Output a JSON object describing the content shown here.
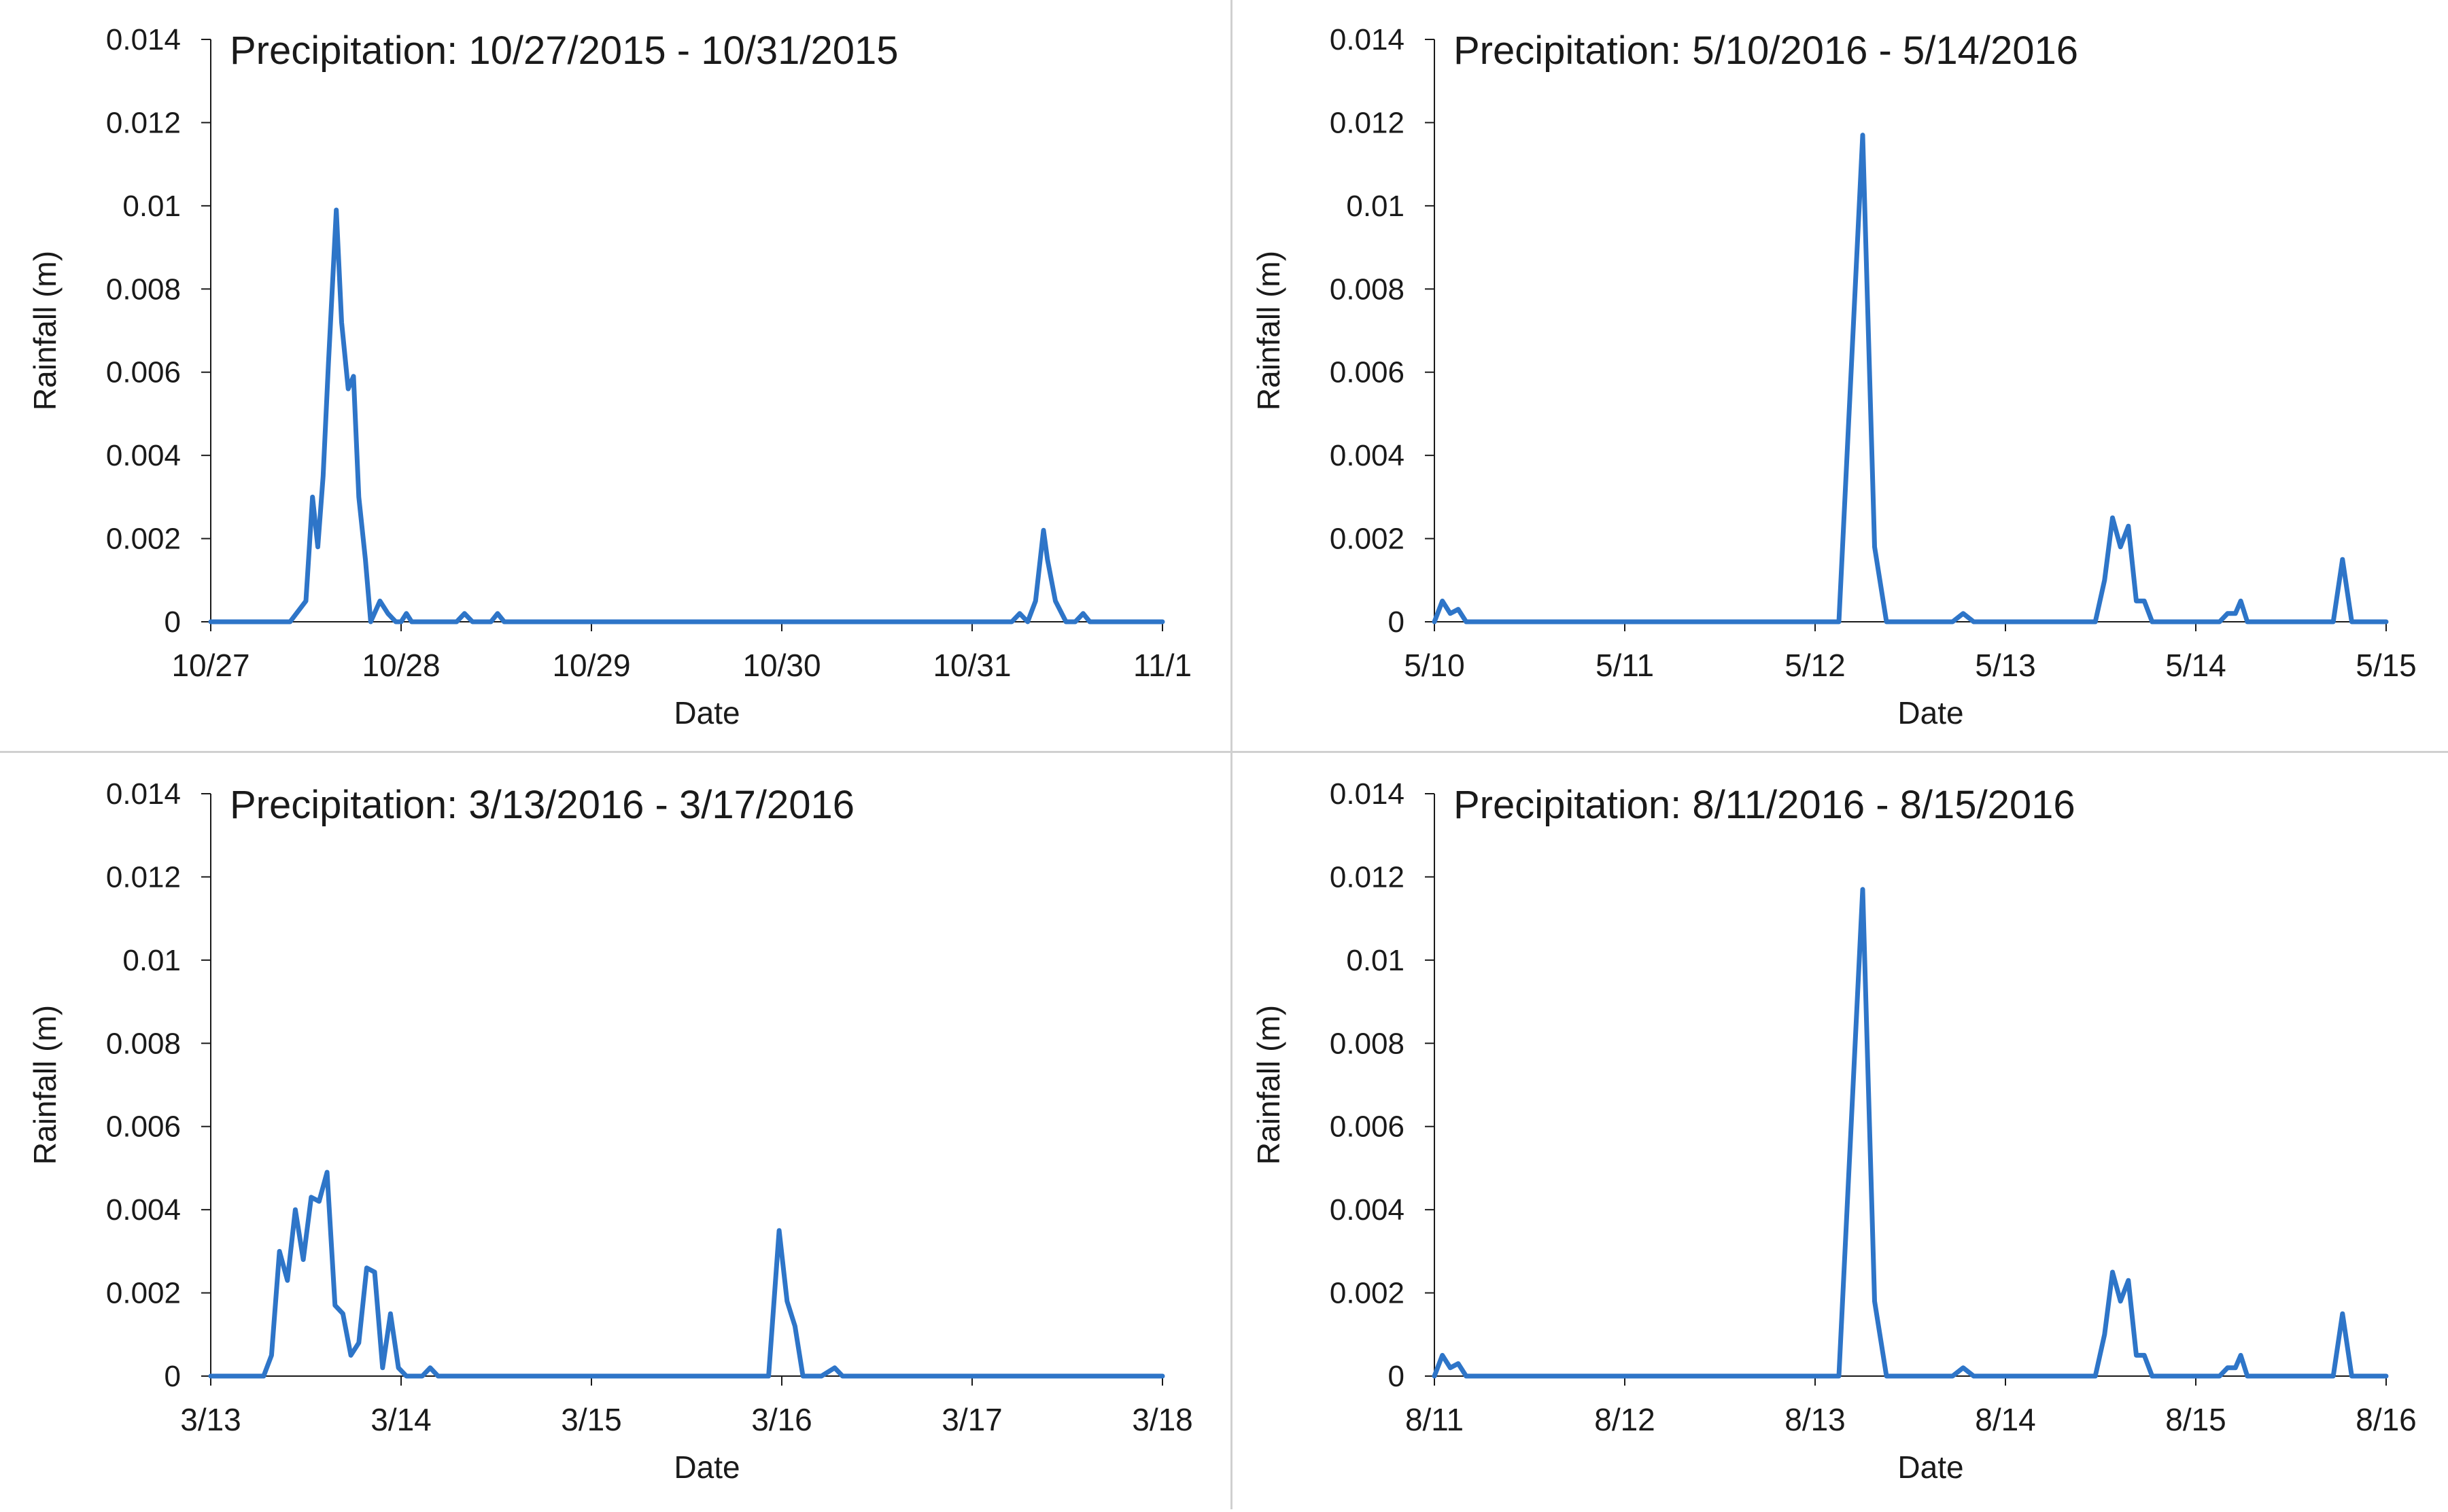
{
  "style": {
    "line_color": "#2e75c8",
    "axis_color": "#1a1a1a",
    "background": "#ffffff"
  },
  "chart_data": [
    {
      "type": "line",
      "title": "Precipitation: 10/27/2015 - 10/31/2015",
      "xlabel": "Date",
      "ylabel": "Rainfall (m)",
      "xlim": [
        "10/27",
        "11/1"
      ],
      "ylim": [
        0,
        0.014
      ],
      "x_ticks": [
        "10/27",
        "10/28",
        "10/29",
        "10/30",
        "10/31",
        "11/1"
      ],
      "y_ticks": [
        "0",
        "0.002",
        "0.004",
        "0.006",
        "0.008",
        "0.01",
        "0.012",
        "0.014"
      ],
      "grid": false,
      "legend": "none",
      "series": [
        {
          "x": [
            "10/27 00:00",
            "10/27 10:00",
            "10/27 12:00",
            "10/27 12:50",
            "10/27 13:30",
            "10/27 14:10",
            "10/27 14:50",
            "10/27 15:50",
            "10/27 16:30",
            "10/27 17:20",
            "10/27 18:00",
            "10/27 18:40",
            "10/27 19:30",
            "10/27 20:10",
            "10/27 21:20",
            "10/27 22:20",
            "10/27 23:20",
            "10/28 00:00",
            "10/28 00:40",
            "10/28 01:20",
            "10/28 02:00",
            "10/28 07:00",
            "10/28 08:00",
            "10/28 09:00",
            "10/28 11:20",
            "10/28 12:10",
            "10/28 13:00",
            "10/31 05:00",
            "10/31 06:00",
            "10/31 07:00",
            "10/31 08:00",
            "10/31 09:00",
            "10/31 09:30",
            "10/31 10:30",
            "10/31 11:50",
            "10/31 13:00",
            "10/31 14:00",
            "10/31 14:50",
            "10/31 15:30",
            "11/1 00:00"
          ],
          "y": [
            0,
            0,
            0.0005,
            0.003,
            0.0018,
            0.0035,
            0.0062,
            0.0099,
            0.0072,
            0.0056,
            0.0059,
            0.003,
            0.0015,
            0,
            0.0005,
            0.0002,
            0,
            0,
            0.0002,
            0,
            0,
            0,
            0.0002,
            0,
            0,
            0.0002,
            0,
            0,
            0.0002,
            0,
            0.0005,
            0.0022,
            0.0015,
            0.0005,
            0,
            0,
            0.0002,
            0,
            0,
            0
          ]
        }
      ]
    },
    {
      "type": "line",
      "title": "Precipitation: 5/10/2016 - 5/14/2016",
      "xlabel": "Date",
      "ylabel": "Rainfall (m)",
      "xlim": [
        "5/10",
        "5/15"
      ],
      "ylim": [
        0,
        0.014
      ],
      "x_ticks": [
        "5/10",
        "5/11",
        "5/12",
        "5/13",
        "5/14",
        "5/15"
      ],
      "y_ticks": [
        "0",
        "0.002",
        "0.004",
        "0.006",
        "0.008",
        "0.01",
        "0.012",
        "0.014"
      ],
      "grid": false,
      "legend": "none",
      "series": [
        {
          "x": [
            "5/10 00:00",
            "5/10 01:00",
            "5/10 02:00",
            "5/10 03:00",
            "5/10 04:00",
            "5/10 05:00",
            "5/10 06:00",
            "5/12 01:00",
            "5/12 03:00",
            "5/12 06:00",
            "5/12 07:30",
            "5/12 09:00",
            "5/12 11:00",
            "5/12 12:00",
            "5/12 17:20",
            "5/12 18:40",
            "5/12 20:00",
            "5/13 11:20",
            "5/13 12:30",
            "5/13 13:30",
            "5/13 14:30",
            "5/13 15:30",
            "5/13 16:30",
            "5/13 17:30",
            "5/13 18:30",
            "5/13 19:40",
            "5/13 21:00",
            "5/14 03:00",
            "5/14 04:00",
            "5/14 05:00",
            "5/14 05:40",
            "5/14 06:30",
            "5/14 07:30",
            "5/14 08:30",
            "5/14 17:20",
            "5/14 18:30",
            "5/14 19:40",
            "5/14 20:40",
            "5/15 00:00"
          ],
          "y": [
            0,
            0.0005,
            0.0002,
            0.0003,
            0,
            0,
            0,
            0,
            0,
            0.0117,
            0.0018,
            0,
            0,
            0,
            0,
            0.0002,
            0,
            0,
            0.001,
            0.0025,
            0.0018,
            0.0023,
            0.0005,
            0.0005,
            0,
            0,
            0,
            0,
            0.0002,
            0.0002,
            0.0005,
            0,
            0,
            0,
            0,
            0.0015,
            0,
            0,
            0
          ]
        }
      ]
    },
    {
      "type": "line",
      "title": "Precipitation: 3/13/2016 - 3/17/2016",
      "xlabel": "Date",
      "ylabel": "Rainfall (m)",
      "xlim": [
        "3/13",
        "3/18"
      ],
      "ylim": [
        0,
        0.014
      ],
      "x_ticks": [
        "3/13",
        "3/14",
        "3/15",
        "3/16",
        "3/17",
        "3/18"
      ],
      "y_ticks": [
        "0",
        "0.002",
        "0.004",
        "0.006",
        "0.008",
        "0.01",
        "0.012",
        "0.014"
      ],
      "grid": false,
      "legend": "none",
      "series": [
        {
          "x": [
            "3/13 00:00",
            "3/13 06:40",
            "3/13 07:40",
            "3/13 08:40",
            "3/13 09:40",
            "3/13 10:40",
            "3/13 11:40",
            "3/13 12:40",
            "3/13 13:40",
            "3/13 14:40",
            "3/13 15:40",
            "3/13 16:40",
            "3/13 17:40",
            "3/13 18:40",
            "3/13 19:40",
            "3/13 20:40",
            "3/13 21:40",
            "3/13 22:40",
            "3/13 23:40",
            "3/14 00:40",
            "3/14 01:40",
            "3/14 02:40",
            "3/14 03:40",
            "3/14 04:40",
            "3/14 05:40",
            "3/14 06:40",
            "3/15 22:20",
            "3/15 23:40",
            "3/16 00:40",
            "3/16 01:40",
            "3/16 02:40",
            "3/16 03:40",
            "3/16 05:00",
            "3/16 06:40",
            "3/16 07:40",
            "3/16 08:40",
            "3/18 00:00"
          ],
          "y": [
            0,
            0,
            0.0005,
            0.003,
            0.0023,
            0.004,
            0.0028,
            0.0043,
            0.0042,
            0.0049,
            0.0017,
            0.0015,
            0.0005,
            0.0008,
            0.0026,
            0.0025,
            0.0002,
            0.0015,
            0.0002,
            0,
            0,
            0,
            0.0002,
            0,
            0,
            0,
            0,
            0.0035,
            0.0018,
            0.0012,
            0,
            0,
            0,
            0.0002,
            0,
            0,
            0
          ]
        }
      ]
    },
    {
      "type": "line",
      "title": "Precipitation: 8/11/2016 - 8/15/2016",
      "xlabel": "Date",
      "ylabel": "Rainfall (m)",
      "xlim": [
        "8/11",
        "8/16"
      ],
      "ylim": [
        0,
        0.014
      ],
      "x_ticks": [
        "8/11",
        "8/12",
        "8/13",
        "8/14",
        "8/15",
        "8/16"
      ],
      "y_ticks": [
        "0",
        "0.002",
        "0.004",
        "0.006",
        "0.008",
        "0.01",
        "0.012",
        "0.014"
      ],
      "grid": false,
      "legend": "none",
      "series": [
        {
          "x": [
            "8/11 00:00",
            "8/11 01:00",
            "8/11 02:00",
            "8/11 03:00",
            "8/11 04:00",
            "8/11 05:00",
            "8/11 06:00",
            "8/13 01:00",
            "8/13 03:00",
            "8/13 06:00",
            "8/13 07:30",
            "8/13 09:00",
            "8/13 11:00",
            "8/13 12:00",
            "8/13 17:20",
            "8/13 18:40",
            "8/13 20:00",
            "8/14 11:20",
            "8/14 12:30",
            "8/14 13:30",
            "8/14 14:30",
            "8/14 15:30",
            "8/14 16:30",
            "8/14 17:30",
            "8/14 18:30",
            "8/14 19:40",
            "8/14 21:00",
            "8/15 03:00",
            "8/15 04:00",
            "8/15 05:00",
            "8/15 05:40",
            "8/15 06:30",
            "8/15 07:30",
            "8/15 08:30",
            "8/15 17:20",
            "8/15 18:30",
            "8/15 19:40",
            "8/15 20:40",
            "8/16 00:00"
          ],
          "y": [
            0,
            0.0005,
            0.0002,
            0.0003,
            0,
            0,
            0,
            0,
            0,
            0.0117,
            0.0018,
            0,
            0,
            0,
            0,
            0.0002,
            0,
            0,
            0.001,
            0.0025,
            0.0018,
            0.0023,
            0.0005,
            0.0005,
            0,
            0,
            0,
            0,
            0.0002,
            0.0002,
            0.0005,
            0,
            0,
            0,
            0,
            0.0015,
            0,
            0,
            0
          ]
        }
      ]
    }
  ]
}
